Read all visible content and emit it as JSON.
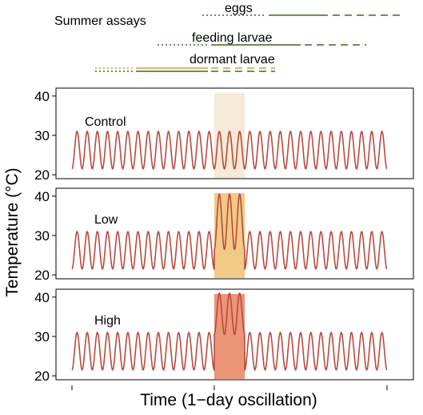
{
  "header": {
    "title": "Summer assays",
    "stages": [
      {
        "name": "eggs"
      },
      {
        "name": "feeding larvae"
      },
      {
        "name": "dormant larvae"
      }
    ]
  },
  "chart_data": {
    "type": "line",
    "xlabel": "Time (1−day oscillation)",
    "ylabel": "Temperature (°C)",
    "ylim": [
      19,
      42
    ],
    "yticks": [
      20,
      30,
      40
    ],
    "ytick_labels": [
      "20",
      "30",
      "40"
    ],
    "x_unit": "days",
    "xlim": [
      0,
      31
    ],
    "cycles": 31,
    "heat_window": {
      "start_day": 14,
      "end_day": 17
    },
    "panels": [
      {
        "name": "Control",
        "baseline_min": 21.5,
        "baseline_max": 31,
        "heat_min": 21.5,
        "heat_max": 31,
        "shade_color": "#f3e6cf",
        "shade_opacity": 0.85
      },
      {
        "name": "Low",
        "baseline_min": 21.5,
        "baseline_max": 31,
        "heat_min": 26.5,
        "heat_max": 40.5,
        "shade_color": "#f0c070",
        "shade_opacity": 0.85
      },
      {
        "name": "High",
        "baseline_min": 21.5,
        "baseline_max": 31,
        "heat_min": 30.5,
        "heat_max": 41,
        "shade_color": "#e8825f",
        "shade_opacity": 0.85
      }
    ],
    "line_color": "#b84a3e",
    "colors": {
      "dark_green": "#3d6b1f",
      "gold": "#c9a23c"
    }
  }
}
